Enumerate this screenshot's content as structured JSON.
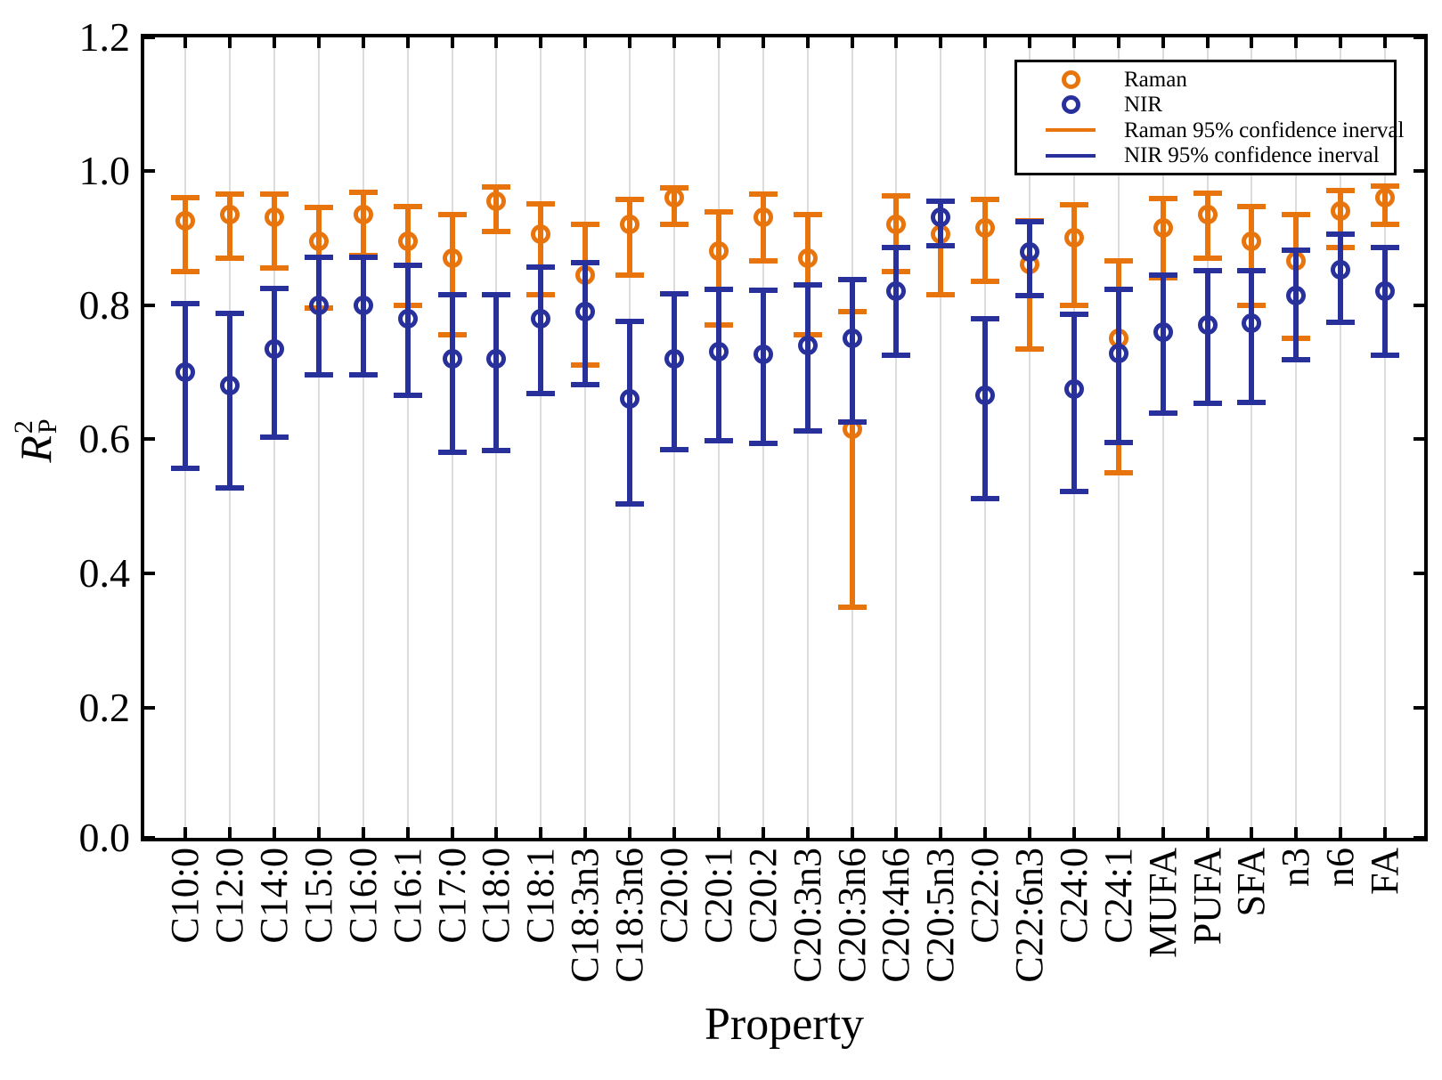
{
  "figure": {
    "xlabel": "Property",
    "ylabel": {
      "base": "R",
      "sup": "2",
      "sub": "P"
    },
    "ytick_labels": [
      "0.0",
      "0.2",
      "0.4",
      "0.6",
      "0.8",
      "1.0",
      "1.2"
    ]
  },
  "legend": {
    "items": [
      {
        "label": "Raman",
        "marker": "circle",
        "color": "#E8740D"
      },
      {
        "label": "NIR",
        "marker": "circle",
        "color": "#28309B"
      },
      {
        "label": "Raman 95% confidence inerval",
        "marker": "line",
        "color": "#E8740D"
      },
      {
        "label": "NIR 95% confidence inerval",
        "marker": "line",
        "color": "#28309B"
      }
    ]
  },
  "colors": {
    "raman": "#E8740D",
    "nir": "#28309B",
    "gridline": "#dcdcdc",
    "axis": "#000000"
  },
  "chart_data": {
    "type": "scatter",
    "title": "",
    "xlabel": "Property",
    "ylabel": "R²_P",
    "ylim": [
      0,
      1.2
    ],
    "yticks": [
      0.0,
      0.2,
      0.4,
      0.6,
      0.8,
      1.0,
      1.2
    ],
    "grid": "vertical light gray gridlines at each category",
    "legend_position": "upper right",
    "error_bar_meaning": "95% confidence interval",
    "categories": [
      "C10:0",
      "C12:0",
      "C14:0",
      "C15:0",
      "C16:0",
      "C16:1",
      "C17:0",
      "C18:0",
      "C18:1",
      "C18:3n3",
      "C18:3n6",
      "C20:0",
      "C20:1",
      "C20:2",
      "C20:3n3",
      "C20:3n6",
      "C20:4n6",
      "C20:5n3",
      "C22:0",
      "C22:6n3",
      "C24:0",
      "C24:1",
      "MUFA",
      "PUFA",
      "SFA",
      "n3",
      "n6",
      "FA"
    ],
    "series": [
      {
        "name": "Raman",
        "color": "#E8740D",
        "values": [
          0.925,
          0.935,
          0.93,
          0.895,
          0.935,
          0.895,
          0.87,
          0.955,
          0.905,
          0.845,
          0.92,
          0.96,
          0.88,
          0.93,
          0.87,
          0.615,
          0.92,
          0.905,
          0.915,
          0.86,
          0.9,
          0.75,
          0.915,
          0.935,
          0.895,
          0.865,
          0.94,
          0.96
        ],
        "ci_low": [
          0.85,
          0.87,
          0.855,
          0.795,
          0.873,
          0.8,
          0.755,
          0.91,
          0.815,
          0.71,
          0.845,
          0.92,
          0.77,
          0.865,
          0.755,
          0.35,
          0.85,
          0.815,
          0.835,
          0.735,
          0.8,
          0.55,
          0.84,
          0.87,
          0.8,
          0.75,
          0.885,
          0.92
        ],
        "ci_high": [
          0.96,
          0.965,
          0.965,
          0.945,
          0.968,
          0.947,
          0.935,
          0.976,
          0.951,
          0.92,
          0.957,
          0.975,
          0.938,
          0.965,
          0.934,
          0.79,
          0.962,
          0.955,
          0.957,
          0.925,
          0.949,
          0.865,
          0.958,
          0.967,
          0.947,
          0.934,
          0.97,
          0.977
        ]
      },
      {
        "name": "NIR",
        "color": "#28309B",
        "values": [
          0.7,
          0.68,
          0.735,
          0.8,
          0.8,
          0.78,
          0.72,
          0.72,
          0.78,
          0.79,
          0.66,
          0.72,
          0.73,
          0.727,
          0.74,
          0.75,
          0.82,
          0.93,
          0.665,
          0.879,
          0.675,
          0.728,
          0.76,
          0.77,
          0.773,
          0.814,
          0.853,
          0.82
        ],
        "ci_low": [
          0.556,
          0.528,
          0.603,
          0.696,
          0.696,
          0.666,
          0.58,
          0.583,
          0.668,
          0.681,
          0.503,
          0.585,
          0.598,
          0.594,
          0.612,
          0.626,
          0.725,
          0.888,
          0.512,
          0.814,
          0.522,
          0.595,
          0.639,
          0.653,
          0.655,
          0.718,
          0.774,
          0.725
        ],
        "ci_high": [
          0.802,
          0.788,
          0.825,
          0.871,
          0.871,
          0.859,
          0.815,
          0.815,
          0.856,
          0.863,
          0.775,
          0.816,
          0.823,
          0.822,
          0.83,
          0.838,
          0.885,
          0.955,
          0.779,
          0.924,
          0.786,
          0.823,
          0.844,
          0.851,
          0.851,
          0.881,
          0.905,
          0.885
        ]
      }
    ]
  }
}
